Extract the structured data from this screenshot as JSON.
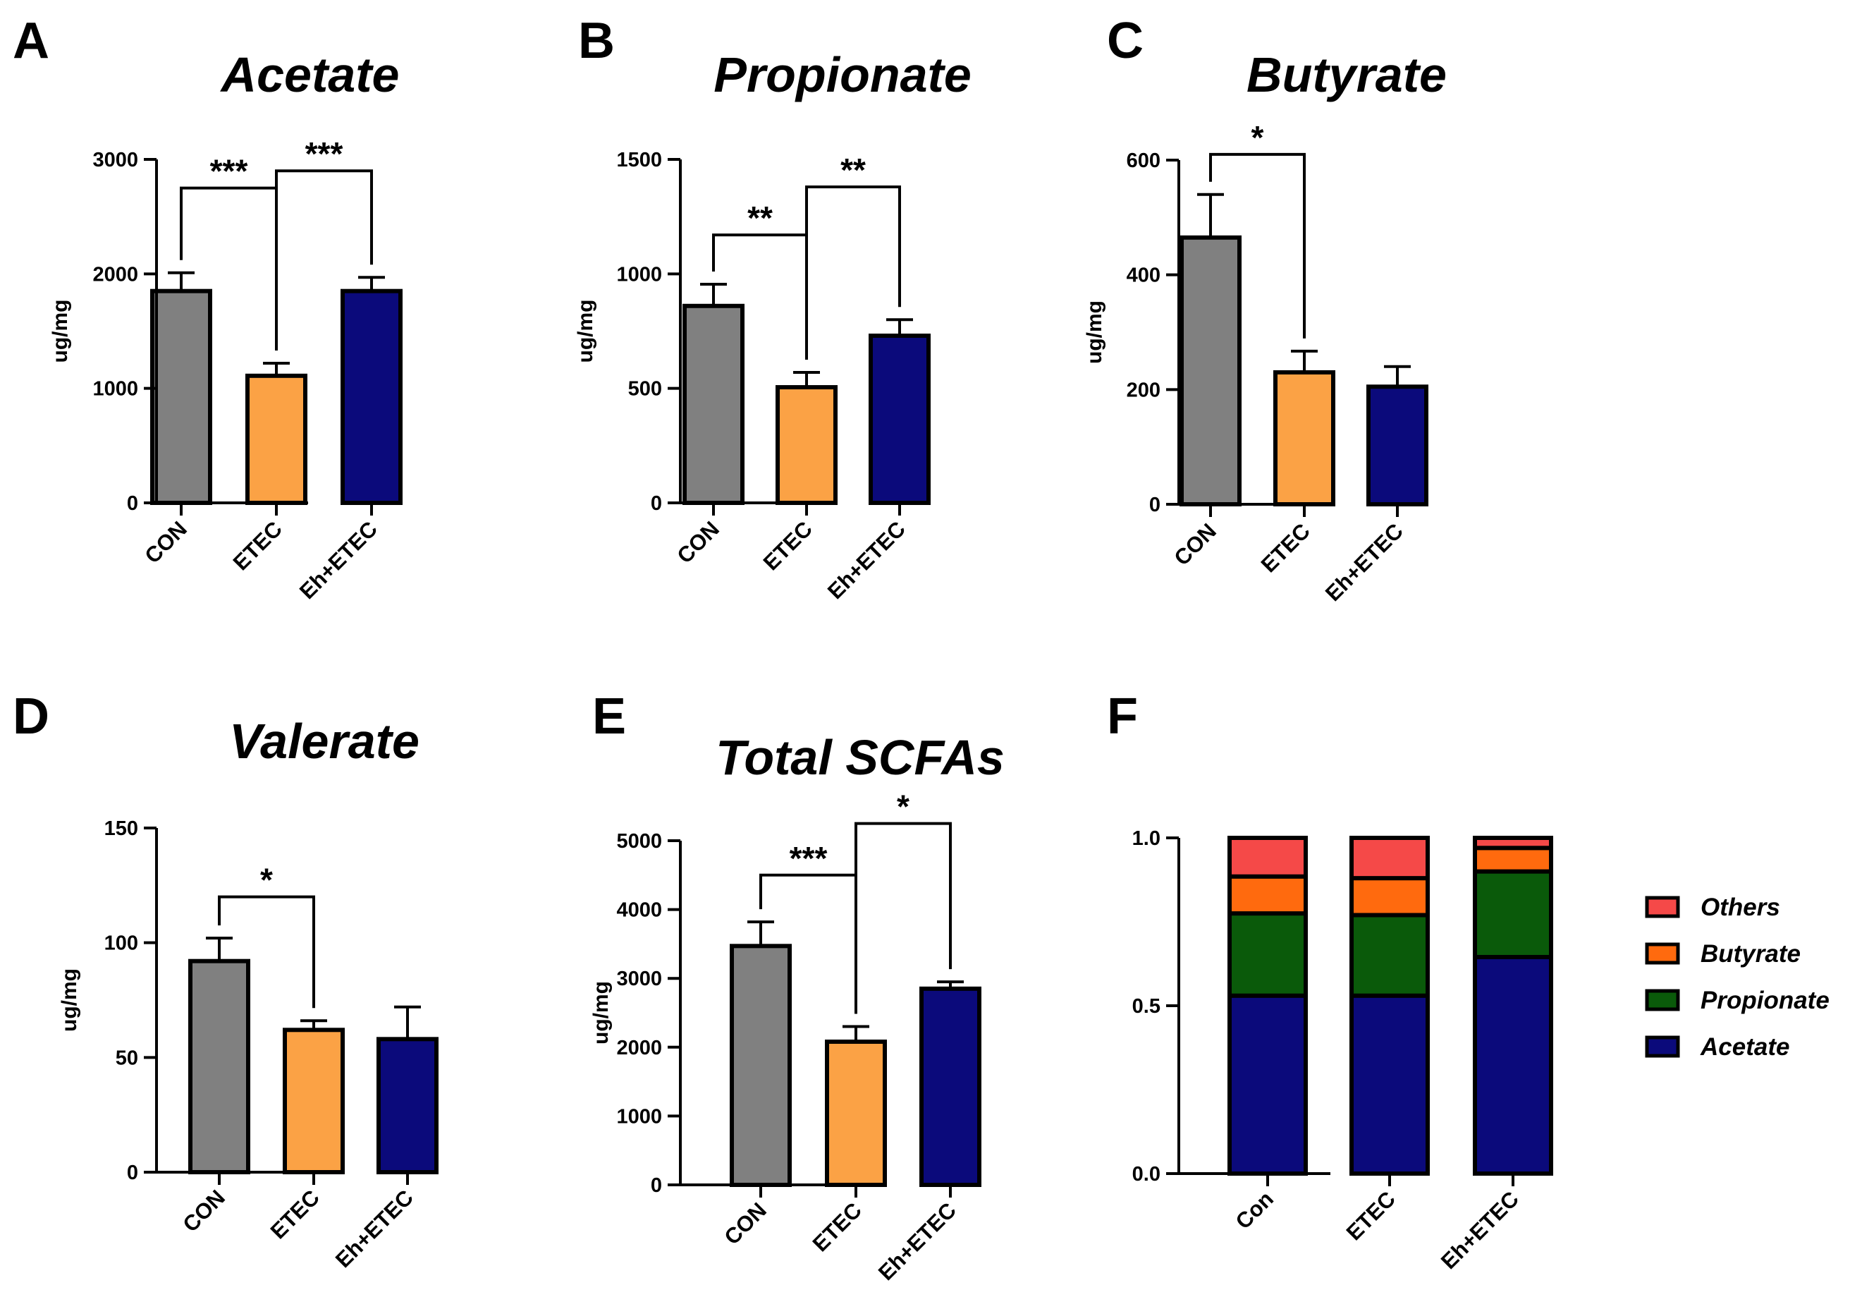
{
  "chart_data": [
    {
      "panel": "A",
      "type": "bar",
      "title": "Acetate",
      "ylabel": "ug/mg",
      "categories": [
        "CON",
        "ETEC",
        "Eh+ETEC"
      ],
      "values": [
        1850,
        1110,
        1850
      ],
      "errors": [
        160,
        110,
        120
      ],
      "ylim": [
        0,
        3000
      ],
      "yticks": [
        0,
        1000,
        2000,
        3000
      ],
      "colors": [
        "#808080",
        "#FBA245",
        "#0B0A7B"
      ],
      "significance": [
        {
          "from": 0,
          "to": 1,
          "label": "***",
          "level": 2750
        },
        {
          "from": 1,
          "to": 2,
          "label": "***",
          "level": 2900
        }
      ]
    },
    {
      "panel": "B",
      "type": "bar",
      "title": "Propionate",
      "ylabel": "ug/mg",
      "categories": [
        "CON",
        "ETEC",
        "Eh+ETEC"
      ],
      "values": [
        860,
        505,
        730
      ],
      "errors": [
        95,
        65,
        70
      ],
      "ylim": [
        0,
        1500
      ],
      "yticks": [
        0,
        500,
        1000,
        1500
      ],
      "colors": [
        "#808080",
        "#FBA245",
        "#0B0A7B"
      ],
      "significance": [
        {
          "from": 0,
          "to": 1,
          "label": "**",
          "level": 1170
        },
        {
          "from": 1,
          "to": 2,
          "label": "**",
          "level": 1380
        }
      ]
    },
    {
      "panel": "C",
      "type": "bar",
      "title": "Butyrate",
      "ylabel": "ug/mg",
      "categories": [
        "CON",
        "ETEC",
        "Eh+ETEC"
      ],
      "values": [
        465,
        230,
        205
      ],
      "errors": [
        75,
        37,
        35
      ],
      "ylim": [
        0,
        600
      ],
      "yticks": [
        0,
        200,
        400,
        600
      ],
      "colors": [
        "#808080",
        "#FBA245",
        "#0B0A7B"
      ],
      "significance": [
        {
          "from": 0,
          "to": 1,
          "label": "*",
          "level": 610
        }
      ]
    },
    {
      "panel": "D",
      "type": "bar",
      "title": "Valerate",
      "ylabel": "ug/mg",
      "categories": [
        "CON",
        "ETEC",
        "Eh+ETEC"
      ],
      "values": [
        92,
        62,
        58
      ],
      "errors": [
        10,
        4,
        14
      ],
      "ylim": [
        0,
        150
      ],
      "yticks": [
        0,
        50,
        100,
        150
      ],
      "colors": [
        "#808080",
        "#FBA245",
        "#0B0A7B"
      ],
      "significance": [
        {
          "from": 0,
          "to": 1,
          "label": "*",
          "level": 120
        }
      ]
    },
    {
      "panel": "E",
      "type": "bar",
      "title": "Total SCFAs",
      "ylabel": "ug/mg",
      "categories": [
        "CON",
        "ETEC",
        "Eh+ETEC"
      ],
      "values": [
        3470,
        2080,
        2850
      ],
      "errors": [
        350,
        220,
        100
      ],
      "ylim": [
        0,
        5000
      ],
      "yticks": [
        0,
        1000,
        2000,
        3000,
        4000,
        5000
      ],
      "colors": [
        "#808080",
        "#FBA245",
        "#0B0A7B"
      ],
      "significance": [
        {
          "from": 0,
          "to": 1,
          "label": "***",
          "level": 4500
        },
        {
          "from": 1,
          "to": 2,
          "label": "*",
          "level": 5250
        }
      ]
    },
    {
      "panel": "F",
      "type": "stacked-bar",
      "title": "",
      "ylabel": "",
      "categories": [
        "Con",
        "ETEC",
        "Eh+ETEC"
      ],
      "ylim": [
        0,
        1.0
      ],
      "yticks": [
        0.0,
        0.5,
        1.0
      ],
      "series": [
        {
          "name": "Acetate",
          "color": "#0B0A7B",
          "values": [
            0.53,
            0.53,
            0.645
          ]
        },
        {
          "name": "Propionate",
          "color": "#0A5A0A",
          "values": [
            0.245,
            0.24,
            0.255
          ]
        },
        {
          "name": "Butyrate",
          "color": "#FF6A0E",
          "values": [
            0.11,
            0.11,
            0.07
          ]
        },
        {
          "name": "Others",
          "color": "#F54948",
          "values": [
            0.115,
            0.12,
            0.03
          ]
        }
      ],
      "legend": [
        "Others",
        "Butyrate",
        "Propionate",
        "Acetate"
      ]
    }
  ]
}
